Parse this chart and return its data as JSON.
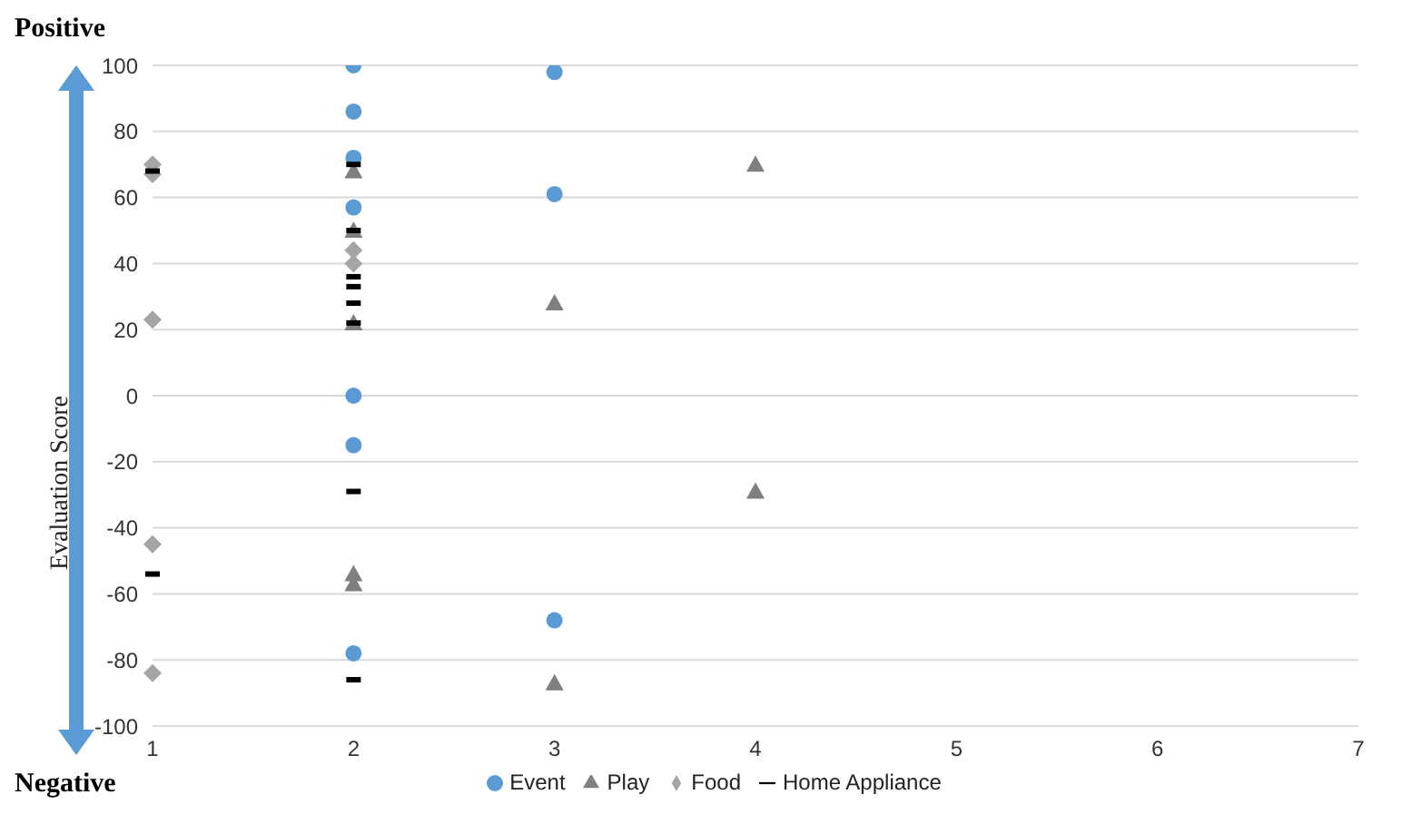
{
  "chart_data": {
    "type": "scatter",
    "ylabel": "Evaluation Score",
    "annotations": [
      "Positive",
      "Negative"
    ],
    "xlim": [
      1,
      7
    ],
    "xticks": [
      1,
      2,
      3,
      4,
      5,
      6,
      7
    ],
    "ylim": [
      -100,
      100
    ],
    "yticks": [
      -100,
      -80,
      -60,
      -40,
      -20,
      0,
      20,
      40,
      60,
      80,
      100
    ],
    "grid": "y",
    "legend": "bottom",
    "series": [
      {
        "name": "Event",
        "color": "#5b9bd5",
        "marker": "circle",
        "x": [
          2,
          2,
          2,
          2,
          2,
          2,
          2,
          3,
          3,
          3
        ],
        "values": [
          100,
          86,
          72,
          57,
          0,
          -15,
          -78,
          98,
          61,
          -68
        ]
      },
      {
        "name": "Play",
        "color": "#7f7f7f",
        "marker": "triangle",
        "x": [
          2,
          2,
          2,
          2,
          2,
          3,
          3,
          4,
          4
        ],
        "values": [
          68,
          50,
          22,
          -54,
          -57,
          28,
          -87,
          70,
          -29
        ]
      },
      {
        "name": "Food",
        "color": "#a5a5a5",
        "marker": "diamond",
        "x": [
          1,
          1,
          1,
          1,
          1,
          2,
          2
        ],
        "values": [
          70,
          67,
          23,
          -45,
          -84,
          44,
          40
        ]
      },
      {
        "name": "Home Appliance",
        "color": "#000000",
        "x": [
          1,
          1,
          2,
          2,
          2,
          2,
          2,
          2,
          2,
          2
        ],
        "values": [
          68,
          -54,
          70,
          50,
          36,
          33,
          28,
          22,
          -29,
          -86
        ]
      }
    ]
  }
}
